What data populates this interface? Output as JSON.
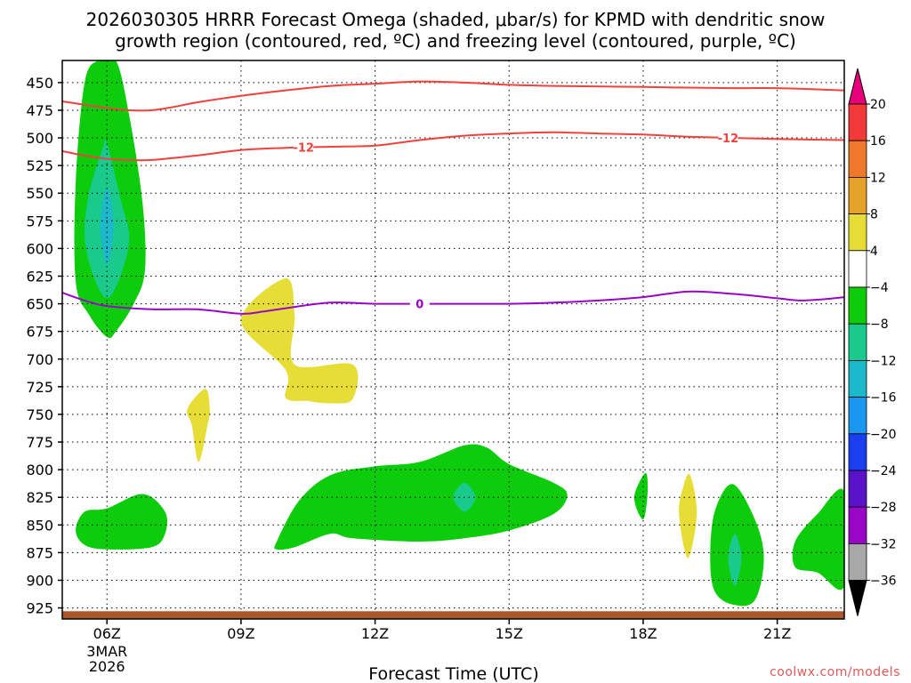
{
  "title": {
    "line1": "2026030305 HRRR Forecast Omega (shaded, μbar/s) for KPMD with dendritic snow",
    "line2": "growth region (contoured, red, ºC) and freezing level (contoured, purple, ºC)"
  },
  "credit": "coolwx.com/models",
  "colors": {
    "red_contour": "#f0413d",
    "purple_contour": "#9a06c8",
    "terrain": "#a8562c",
    "omega_green": "#0ccc0c",
    "omega_teal": "#1ac98c",
    "omega_cyan": "#1bb9c9",
    "omega_yellow": "#e6de37"
  },
  "chart_data": {
    "type": "time-height cross section (filled contour)",
    "xlabel": "Forecast Time (UTC)",
    "ylabel": "",
    "x_ticks": [
      {
        "hour": 6,
        "label": "06Z",
        "sub": [
          "3MAR",
          "2026"
        ]
      },
      {
        "hour": 9,
        "label": "09Z"
      },
      {
        "hour": 12,
        "label": "12Z"
      },
      {
        "hour": 15,
        "label": "15Z"
      },
      {
        "hour": 18,
        "label": "18Z"
      },
      {
        "hour": 21,
        "label": "21Z"
      }
    ],
    "xlim": [
      5,
      22.5
    ],
    "y_ticks": [
      450,
      475,
      500,
      525,
      550,
      575,
      600,
      625,
      650,
      675,
      700,
      725,
      750,
      775,
      800,
      825,
      850,
      875,
      900,
      925
    ],
    "ylim_hpa": [
      430,
      935
    ],
    "colorbar": {
      "units": "μbar/s",
      "levels": [
        20,
        16,
        12,
        8,
        4,
        -4,
        -8,
        -12,
        -16,
        -20,
        -24,
        -28,
        -32,
        -36
      ],
      "bins": [
        {
          "color": "#e8007a",
          "label": ">20"
        },
        {
          "color": "#f23a3a"
        },
        {
          "color": "#f0782a"
        },
        {
          "color": "#e4a328"
        },
        {
          "color": "#e6de37"
        },
        {
          "color": "#ffffff"
        },
        {
          "color": "#0ccc0c"
        },
        {
          "color": "#1ac98c"
        },
        {
          "color": "#1bb9c9"
        },
        {
          "color": "#1a97f0"
        },
        {
          "color": "#1a3ef0"
        },
        {
          "color": "#5a12c8"
        },
        {
          "color": "#9a06c8"
        },
        {
          "color": "#a8a8a8"
        },
        {
          "color": "#000000",
          "label": "<-36"
        }
      ]
    },
    "series": [
      {
        "name": "-12 C isotherm (upper, DGZ top)",
        "color": "#f0413d",
        "points": [
          [
            5,
            467
          ],
          [
            5.5,
            470
          ],
          [
            6,
            473
          ],
          [
            6.5,
            475
          ],
          [
            7,
            475
          ],
          [
            7.5,
            472
          ],
          [
            8,
            468
          ],
          [
            9,
            462
          ],
          [
            10,
            457
          ],
          [
            11,
            453
          ],
          [
            12,
            451
          ],
          [
            13,
            449
          ],
          [
            14,
            450
          ],
          [
            15,
            452
          ],
          [
            16,
            453
          ],
          [
            18,
            454
          ],
          [
            20,
            455
          ],
          [
            21,
            455
          ],
          [
            22.5,
            457
          ]
        ]
      },
      {
        "name": "-12 C isotherm (lower, DGZ bottom)",
        "color": "#f0413d",
        "label": "-12",
        "label_hours": [
          10.4,
          19.9
        ],
        "points": [
          [
            5,
            512
          ],
          [
            5.5,
            516
          ],
          [
            6,
            519
          ],
          [
            6.5,
            520
          ],
          [
            7,
            520
          ],
          [
            8,
            516
          ],
          [
            9,
            511
          ],
          [
            10,
            509
          ],
          [
            11,
            508
          ],
          [
            12,
            507
          ],
          [
            13,
            502
          ],
          [
            14,
            498
          ],
          [
            15,
            496
          ],
          [
            16,
            495
          ],
          [
            17,
            496
          ],
          [
            18,
            497
          ],
          [
            19,
            499
          ],
          [
            20,
            500
          ],
          [
            21,
            501
          ],
          [
            22.5,
            502
          ]
        ]
      },
      {
        "name": "0 C isotherm (freezing level)",
        "color": "#9a06c8",
        "label": "0",
        "label_hours": [
          13
        ],
        "points": [
          [
            5,
            640
          ],
          [
            5.5,
            647
          ],
          [
            6,
            652
          ],
          [
            7,
            655
          ],
          [
            8,
            655
          ],
          [
            9,
            659
          ],
          [
            9.5,
            657
          ],
          [
            10,
            654
          ],
          [
            11,
            649
          ],
          [
            12,
            650
          ],
          [
            13,
            650
          ],
          [
            14,
            650
          ],
          [
            15,
            650
          ],
          [
            16,
            649
          ],
          [
            17,
            647
          ],
          [
            18,
            644
          ],
          [
            19,
            639
          ],
          [
            20,
            641
          ],
          [
            21,
            645
          ],
          [
            21.5,
            647
          ],
          [
            22,
            646
          ],
          [
            22.5,
            644
          ]
        ]
      },
      {
        "name": "Terrain (surface)",
        "color": "#a8562c",
        "surface_hpa": 928
      }
    ],
    "omega_regions": [
      {
        "name": "06Z deep column",
        "color": "#0ccc0c",
        "value_range": [
          -8,
          -4
        ],
        "points": [
          [
            6.2,
            430
          ],
          [
            6.5,
            480
          ],
          [
            6.8,
            560
          ],
          [
            6.85,
            620
          ],
          [
            6.6,
            650
          ],
          [
            6.2,
            675
          ],
          [
            6,
            680
          ],
          [
            5.6,
            660
          ],
          [
            5.3,
            630
          ],
          [
            5.3,
            540
          ],
          [
            5.5,
            450
          ],
          [
            5.8,
            430
          ]
        ]
      },
      {
        "name": "06Z deep column core",
        "color": "#1ac98c",
        "value_range": [
          -12,
          -8
        ],
        "points": [
          [
            6,
            505
          ],
          [
            6.3,
            555
          ],
          [
            6.5,
            590
          ],
          [
            6.3,
            625
          ],
          [
            6,
            645
          ],
          [
            5.7,
            625
          ],
          [
            5.5,
            590
          ],
          [
            5.6,
            550
          ],
          [
            5.9,
            510
          ]
        ]
      },
      {
        "name": "06Z deep column center",
        "color": "#1bb9c9",
        "value_range": [
          -16,
          -12
        ],
        "points": [
          [
            6,
            545
          ],
          [
            6.15,
            580
          ],
          [
            6,
            615
          ],
          [
            5.85,
            580
          ]
        ]
      },
      {
        "name": "06Z low-level",
        "color": "#0ccc0c",
        "value_range": [
          -8,
          -4
        ],
        "points": [
          [
            6,
            835
          ],
          [
            6.8,
            822
          ],
          [
            7.3,
            838
          ],
          [
            7.3,
            858
          ],
          [
            7,
            870
          ],
          [
            6,
            872
          ],
          [
            5.5,
            868
          ],
          [
            5.3,
            855
          ],
          [
            5.5,
            838
          ]
        ]
      },
      {
        "name": "12-15Z low-level",
        "color": "#0ccc0c",
        "value_range": [
          -8,
          -4
        ],
        "points": [
          [
            9.8,
            865
          ],
          [
            10.3,
            828
          ],
          [
            11,
            805
          ],
          [
            12,
            797
          ],
          [
            13,
            793
          ],
          [
            14,
            778
          ],
          [
            14.5,
            780
          ],
          [
            15,
            795
          ],
          [
            16,
            812
          ],
          [
            16.3,
            823
          ],
          [
            16,
            840
          ],
          [
            15,
            855
          ],
          [
            14,
            862
          ],
          [
            13,
            865
          ],
          [
            11.5,
            862
          ],
          [
            11,
            858
          ],
          [
            10.2,
            870
          ],
          [
            9.8,
            872
          ]
        ]
      },
      {
        "name": "14Z low-level core",
        "color": "#1ac98c",
        "value_range": [
          -12,
          -8
        ],
        "points": [
          [
            14,
            812
          ],
          [
            14.25,
            825
          ],
          [
            14,
            838
          ],
          [
            13.75,
            825
          ]
        ]
      },
      {
        "name": "18Z small",
        "color": "#0ccc0c",
        "value_range": [
          -8,
          -4
        ],
        "points": [
          [
            18.05,
            803
          ],
          [
            18.1,
            820
          ],
          [
            18,
            845
          ],
          [
            17.8,
            825
          ]
        ]
      },
      {
        "name": "20Z low-level",
        "color": "#0ccc0c",
        "value_range": [
          -8,
          -4
        ],
        "points": [
          [
            20,
            813
          ],
          [
            20.5,
            845
          ],
          [
            20.7,
            880
          ],
          [
            20.5,
            918
          ],
          [
            20,
            922
          ],
          [
            19.6,
            910
          ],
          [
            19.5,
            880
          ],
          [
            19.6,
            838
          ]
        ]
      },
      {
        "name": "20Z low-level core",
        "color": "#1ac98c",
        "value_range": [
          -12,
          -8
        ],
        "points": [
          [
            20.05,
            858
          ],
          [
            20.2,
            880
          ],
          [
            20.05,
            905
          ],
          [
            19.9,
            880
          ]
        ]
      },
      {
        "name": "22Z edge",
        "color": "#0ccc0c",
        "value_range": [
          -8,
          -4
        ],
        "points": [
          [
            22.5,
            820
          ],
          [
            22.5,
            905
          ],
          [
            21.9,
            893
          ],
          [
            21.4,
            888
          ],
          [
            21.4,
            865
          ],
          [
            21.9,
            840
          ]
        ]
      },
      {
        "name": "09-11Z ascent",
        "color": "#e6de37",
        "value_range": [
          4,
          8
        ],
        "points": [
          [
            10,
            627
          ],
          [
            10.2,
            660
          ],
          [
            10.2,
            705
          ],
          [
            11.5,
            705
          ],
          [
            11.5,
            736
          ],
          [
            11,
            740
          ],
          [
            10.5,
            738
          ],
          [
            10,
            735
          ],
          [
            10,
            710
          ],
          [
            9,
            665
          ]
        ]
      },
      {
        "name": "08Z sliver",
        "color": "#e6de37",
        "value_range": [
          4,
          8
        ],
        "points": [
          [
            8.2,
            727
          ],
          [
            8.3,
            745
          ],
          [
            8.25,
            760
          ],
          [
            8.05,
            793
          ],
          [
            7.9,
            760
          ],
          [
            7.8,
            745
          ]
        ]
      },
      {
        "name": "19Z sliver",
        "color": "#e6de37",
        "value_range": [
          4,
          8
        ],
        "points": [
          [
            19.05,
            805
          ],
          [
            19.2,
            840
          ],
          [
            19,
            880
          ],
          [
            18.8,
            840
          ],
          [
            18.9,
            815
          ]
        ]
      }
    ]
  }
}
